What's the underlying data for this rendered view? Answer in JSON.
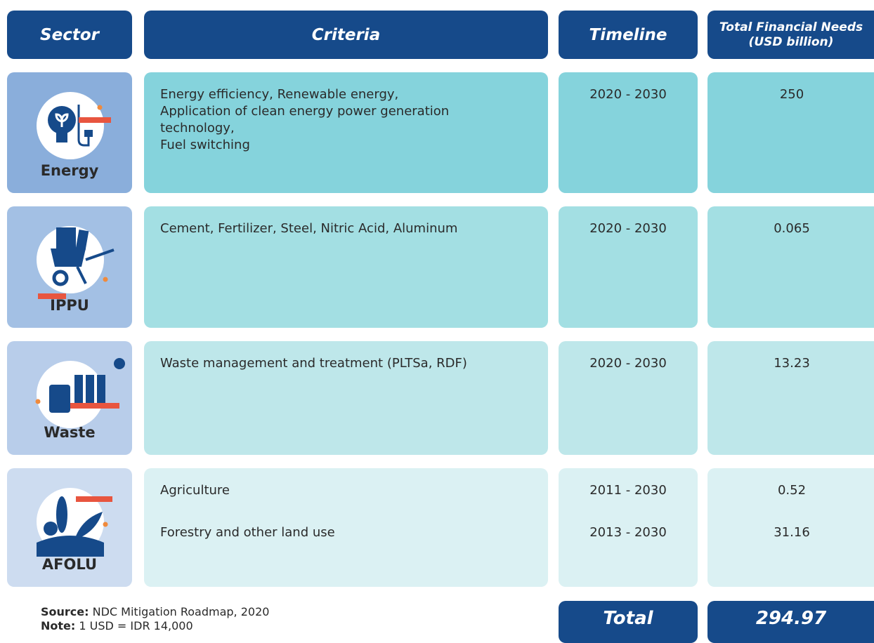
{
  "header": {
    "sector": "Sector",
    "criteria": "Criteria",
    "timeline": "Timeline",
    "needs": [
      "Total Financial Needs",
      "(USD billion)"
    ]
  },
  "rows": [
    {
      "sector": "Energy",
      "items": [
        {
          "criteria": [
            "Energy efficiency, Renewable energy,",
            "Application of clean energy power generation technology,",
            "Fuel switching"
          ],
          "timeline": "2020 - 2030",
          "needs": 250
        }
      ]
    },
    {
      "sector": "IPPU",
      "items": [
        {
          "criteria": [
            "Cement, Fertilizer, Steel, Nitric Acid, Aluminum"
          ],
          "timeline": "2020 - 2030",
          "needs": 0.065
        }
      ]
    },
    {
      "sector": "Waste",
      "items": [
        {
          "criteria": [
            "Waste management and treatment (PLTSa, RDF)"
          ],
          "timeline": "2020 - 2030",
          "needs": 13.23
        }
      ]
    },
    {
      "sector": "AFOLU",
      "items": [
        {
          "criteria": [
            "Agriculture"
          ],
          "timeline": "2011 - 2030",
          "needs": 0.52
        },
        {
          "criteria": [
            "Forestry and other land use"
          ],
          "timeline": "2013 - 2030",
          "needs": 31.16
        }
      ]
    }
  ],
  "footer": {
    "source_label": "Source:",
    "source": "NDC Mitigation Roadmap, 2020",
    "note_label": "Note:",
    "note": "1 USD = IDR 14,000",
    "total_label": "Total",
    "total": 294.97
  }
}
